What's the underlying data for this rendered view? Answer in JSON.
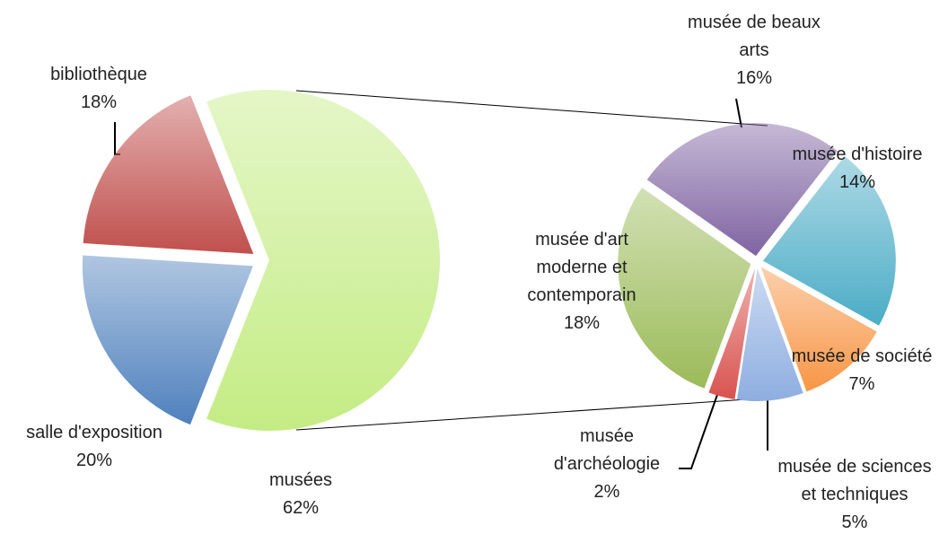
{
  "chart_data": [
    {
      "type": "pie",
      "categories": [
        "bibliothèque",
        "salle d'exposition",
        "musées"
      ],
      "values": [
        18,
        20,
        62
      ],
      "value_labels": [
        "18%",
        "20%",
        "62%"
      ],
      "colors": [
        "#c0504d",
        "#4f81bd",
        "#c4ec84"
      ]
    },
    {
      "type": "pie",
      "categories": [
        "musée de beaux arts",
        "musée d'histoire",
        "musée de société",
        "musée de sciences et techniques",
        "musée d'archéologie",
        "musée d'art moderne et contemporain"
      ],
      "values": [
        16,
        14,
        7,
        5,
        2,
        18
      ],
      "value_labels": [
        "16%",
        "14%",
        "7%",
        "5%",
        "2%",
        "18%"
      ],
      "colors": [
        "#8064a2",
        "#4bacc6",
        "#f79646",
        "#8eaee0",
        "#d9534f",
        "#9bbb59"
      ]
    }
  ]
}
